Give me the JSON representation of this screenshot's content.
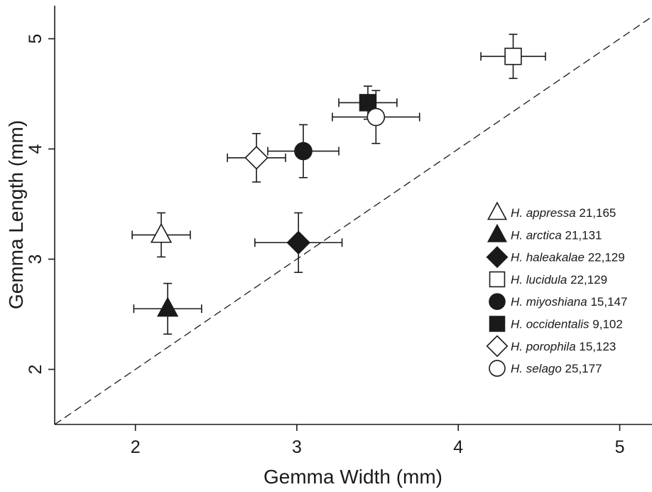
{
  "chart_data": {
    "type": "scatter",
    "xlabel": "Gemma Width (mm)",
    "ylabel": "Gemma Length (mm)",
    "xlim": [
      1.5,
      5.2
    ],
    "ylim": [
      1.5,
      5.3
    ],
    "x_ticks": [
      2,
      3,
      4,
      5
    ],
    "y_ticks": [
      2,
      3,
      4,
      5
    ],
    "reference_line": "y = x (dashed)",
    "legend_position": "right, lower-middle",
    "series": [
      {
        "name": "H. appressa",
        "species": "H. appressa",
        "counts": "21,165",
        "marker": "triangle-open",
        "x": 2.16,
        "y": 3.22,
        "x_err": 0.18,
        "y_err": 0.2
      },
      {
        "name": "H. arctica",
        "species": "H. arctica",
        "counts": "21,131",
        "marker": "triangle-filled",
        "x": 2.2,
        "y": 2.55,
        "x_err": 0.21,
        "y_err": 0.23
      },
      {
        "name": "H. haleakalae",
        "species": "H. haleakalae",
        "counts": "22,129",
        "marker": "diamond-filled",
        "x": 3.01,
        "y": 3.15,
        "x_err": 0.27,
        "y_err": 0.27
      },
      {
        "name": "H. lucidula",
        "species": "H. lucidula",
        "counts": "22,129",
        "marker": "square-open",
        "x": 4.34,
        "y": 4.84,
        "x_err": 0.2,
        "y_err": 0.2
      },
      {
        "name": "H. miyoshiana",
        "species": "H. miyoshiana",
        "counts": "15,147",
        "marker": "circle-filled",
        "x": 3.04,
        "y": 3.98,
        "x_err": 0.22,
        "y_err": 0.24
      },
      {
        "name": "H. occidentalis",
        "species": "H. occidentalis",
        "counts": "9,102",
        "marker": "square-filled",
        "x": 3.44,
        "y": 4.42,
        "x_err": 0.18,
        "y_err": 0.15
      },
      {
        "name": "H. porophila",
        "species": "H. porophila",
        "counts": "15,123",
        "marker": "diamond-open",
        "x": 2.75,
        "y": 3.92,
        "x_err": 0.18,
        "y_err": 0.22
      },
      {
        "name": "H. selago",
        "species": "H. selago",
        "counts": "25,177",
        "marker": "circle-open",
        "x": 3.49,
        "y": 4.29,
        "x_err": 0.27,
        "y_err": 0.24
      }
    ]
  }
}
